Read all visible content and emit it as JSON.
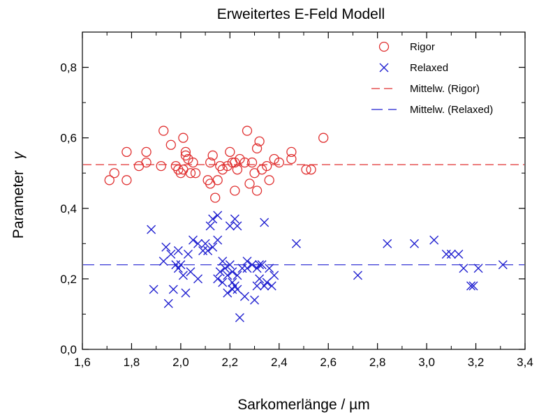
{
  "chart_data": {
    "type": "scatter",
    "title": "Erweitertes E-Feld Modell",
    "xlabel": "Sarkomerlänge / µm",
    "ylabel_text": "Parameter",
    "ylabel_symbol": "γ",
    "xlim": [
      1.6,
      3.4
    ],
    "ylim": [
      0.0,
      0.9
    ],
    "xticks": [
      "1,6",
      "1,8",
      "2,0",
      "2,2",
      "2,4",
      "2,6",
      "2,8",
      "3,0",
      "3,2",
      "3,4"
    ],
    "yticks": [
      "0,0",
      "0,2",
      "0,4",
      "0,6",
      "0,8"
    ],
    "grid": false,
    "legend_position": "top-right",
    "series": [
      {
        "name": "Rigor",
        "marker": "circle",
        "color": "#e03030",
        "points": [
          [
            1.71,
            0.48
          ],
          [
            1.73,
            0.5
          ],
          [
            1.78,
            0.56
          ],
          [
            1.78,
            0.48
          ],
          [
            1.83,
            0.52
          ],
          [
            1.86,
            0.53
          ],
          [
            1.86,
            0.56
          ],
          [
            1.92,
            0.52
          ],
          [
            1.93,
            0.62
          ],
          [
            1.96,
            0.58
          ],
          [
            1.98,
            0.52
          ],
          [
            1.99,
            0.51
          ],
          [
            2.0,
            0.5
          ],
          [
            2.01,
            0.51
          ],
          [
            2.01,
            0.6
          ],
          [
            2.02,
            0.56
          ],
          [
            2.02,
            0.55
          ],
          [
            2.03,
            0.54
          ],
          [
            2.04,
            0.5
          ],
          [
            2.05,
            0.53
          ],
          [
            2.06,
            0.5
          ],
          [
            2.11,
            0.48
          ],
          [
            2.12,
            0.47
          ],
          [
            2.12,
            0.53
          ],
          [
            2.13,
            0.55
          ],
          [
            2.14,
            0.43
          ],
          [
            2.15,
            0.48
          ],
          [
            2.16,
            0.52
          ],
          [
            2.17,
            0.51
          ],
          [
            2.19,
            0.52
          ],
          [
            2.2,
            0.56
          ],
          [
            2.21,
            0.53
          ],
          [
            2.22,
            0.53
          ],
          [
            2.22,
            0.45
          ],
          [
            2.23,
            0.51
          ],
          [
            2.24,
            0.54
          ],
          [
            2.26,
            0.53
          ],
          [
            2.27,
            0.62
          ],
          [
            2.28,
            0.47
          ],
          [
            2.29,
            0.53
          ],
          [
            2.3,
            0.5
          ],
          [
            2.31,
            0.57
          ],
          [
            2.31,
            0.45
          ],
          [
            2.32,
            0.59
          ],
          [
            2.33,
            0.51
          ],
          [
            2.35,
            0.52
          ],
          [
            2.36,
            0.48
          ],
          [
            2.38,
            0.54
          ],
          [
            2.4,
            0.53
          ],
          [
            2.45,
            0.54
          ],
          [
            2.45,
            0.56
          ],
          [
            2.51,
            0.51
          ],
          [
            2.53,
            0.51
          ],
          [
            2.58,
            0.6
          ]
        ]
      },
      {
        "name": "Relaxed",
        "marker": "x",
        "color": "#2020d0",
        "points": [
          [
            1.88,
            0.34
          ],
          [
            1.89,
            0.17
          ],
          [
            1.93,
            0.25
          ],
          [
            1.94,
            0.29
          ],
          [
            1.95,
            0.13
          ],
          [
            1.96,
            0.27
          ],
          [
            1.97,
            0.17
          ],
          [
            1.98,
            0.24
          ],
          [
            1.99,
            0.23
          ],
          [
            1.99,
            0.28
          ],
          [
            2.0,
            0.24
          ],
          [
            2.01,
            0.21
          ],
          [
            2.02,
            0.16
          ],
          [
            2.03,
            0.27
          ],
          [
            2.04,
            0.22
          ],
          [
            2.05,
            0.31
          ],
          [
            2.07,
            0.2
          ],
          [
            2.07,
            0.3
          ],
          [
            2.09,
            0.28
          ],
          [
            2.1,
            0.3
          ],
          [
            2.11,
            0.28
          ],
          [
            2.12,
            0.35
          ],
          [
            2.13,
            0.29
          ],
          [
            2.13,
            0.37
          ],
          [
            2.15,
            0.38
          ],
          [
            2.15,
            0.31
          ],
          [
            2.15,
            0.2
          ],
          [
            2.16,
            0.22
          ],
          [
            2.17,
            0.25
          ],
          [
            2.17,
            0.19
          ],
          [
            2.18,
            0.23
          ],
          [
            2.19,
            0.16
          ],
          [
            2.19,
            0.21
          ],
          [
            2.2,
            0.35
          ],
          [
            2.2,
            0.24
          ],
          [
            2.21,
            0.17
          ],
          [
            2.21,
            0.19
          ],
          [
            2.21,
            0.22
          ],
          [
            2.22,
            0.37
          ],
          [
            2.22,
            0.18
          ],
          [
            2.23,
            0.35
          ],
          [
            2.23,
            0.21
          ],
          [
            2.23,
            0.17
          ],
          [
            2.24,
            0.09
          ],
          [
            2.25,
            0.23
          ],
          [
            2.26,
            0.15
          ],
          [
            2.27,
            0.23
          ],
          [
            2.27,
            0.25
          ],
          [
            2.29,
            0.24
          ],
          [
            2.3,
            0.14
          ],
          [
            2.31,
            0.23
          ],
          [
            2.31,
            0.18
          ],
          [
            2.32,
            0.24
          ],
          [
            2.32,
            0.2
          ],
          [
            2.33,
            0.24
          ],
          [
            2.34,
            0.36
          ],
          [
            2.34,
            0.18
          ],
          [
            2.35,
            0.19
          ],
          [
            2.36,
            0.23
          ],
          [
            2.37,
            0.18
          ],
          [
            2.38,
            0.21
          ],
          [
            2.47,
            0.3
          ],
          [
            2.72,
            0.21
          ],
          [
            2.84,
            0.3
          ],
          [
            2.95,
            0.3
          ],
          [
            3.03,
            0.31
          ],
          [
            3.08,
            0.27
          ],
          [
            3.1,
            0.27
          ],
          [
            3.13,
            0.27
          ],
          [
            3.15,
            0.23
          ],
          [
            3.18,
            0.18
          ],
          [
            3.19,
            0.18
          ],
          [
            3.21,
            0.23
          ],
          [
            3.31,
            0.24
          ]
        ]
      }
    ],
    "mean_lines": [
      {
        "name": "Mittelw. (Rigor)",
        "y": 0.524,
        "color": "#e03030"
      },
      {
        "name": "Mittelw. (Relaxed)",
        "y": 0.24,
        "color": "#2020d0"
      }
    ]
  }
}
